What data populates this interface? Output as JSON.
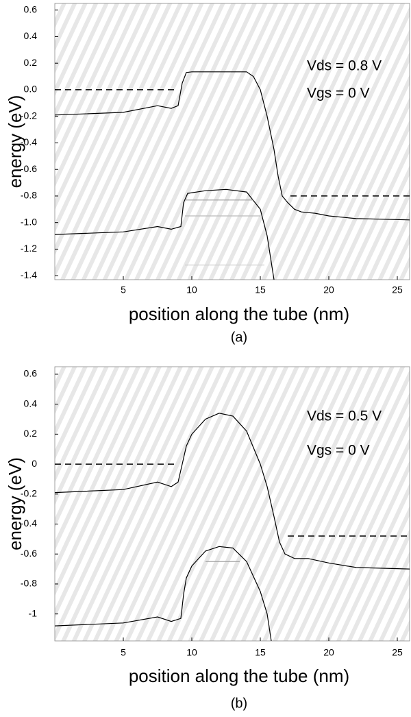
{
  "chart_data": [
    {
      "type": "line",
      "xlabel": "position along the tube (nm)",
      "ylabel": "energy (eV)",
      "caption": "(a)",
      "annotations": [
        "Vds = 0.8 V",
        "Vgs = 0 V"
      ],
      "xlim": [
        0,
        25.9
      ],
      "ylim": [
        -1.43,
        0.65
      ],
      "xticks": [
        5,
        10,
        15,
        20,
        25
      ],
      "yticks": [
        0.6,
        0.4,
        0.2,
        {
          "value": 0,
          "label": "0.0"
        },
        -0.2,
        -0.4,
        -0.6,
        -0.8,
        {
          "value": -1,
          "label": "-1.0"
        },
        -1.2,
        -1.4
      ],
      "series": [
        {
          "color": "#000000",
          "dash": false,
          "x": [
            0,
            5,
            7.5,
            8.5,
            9.0,
            9.3,
            9.6,
            10,
            14,
            14.5,
            15,
            15.5,
            16,
            16.3,
            16.6,
            17,
            17.5,
            18,
            19,
            20,
            22,
            25.9
          ],
          "values": [
            -0.19,
            -0.17,
            -0.12,
            -0.14,
            -0.12,
            0.05,
            0.13,
            0.135,
            0.135,
            0.1,
            0.0,
            -0.2,
            -0.45,
            -0.65,
            -0.8,
            -0.85,
            -0.9,
            -0.92,
            -0.93,
            -0.95,
            -0.97,
            -0.98
          ]
        },
        {
          "color": "#000000",
          "dash": false,
          "x": [
            0,
            5,
            7.5,
            8.5,
            9.2,
            9.4,
            9.7,
            11,
            12.5,
            14,
            15,
            15.5,
            16
          ],
          "values": [
            -1.09,
            -1.07,
            -1.03,
            -1.05,
            -1.03,
            -0.85,
            -0.78,
            -0.76,
            -0.75,
            -0.77,
            -0.9,
            -1.1,
            -1.43
          ]
        },
        {
          "color": "#000000",
          "dash": true,
          "x": [
            0,
            8.8
          ],
          "values": [
            0,
            0
          ]
        },
        {
          "color": "#000000",
          "dash": true,
          "x": [
            17.2,
            25.9
          ],
          "values": [
            -0.8,
            -0.8
          ]
        },
        {
          "color": "#999999",
          "dash": false,
          "x": [
            9.5,
            14.5
          ],
          "values": [
            -0.83,
            -0.83
          ]
        },
        {
          "color": "#bbbbbb",
          "dash": false,
          "x": [
            9.5,
            15
          ],
          "values": [
            -0.95,
            -0.95
          ]
        },
        {
          "color": "#cccccc",
          "dash": false,
          "x": [
            9.5,
            15.3
          ],
          "values": [
            -1.32,
            -1.32
          ]
        }
      ]
    },
    {
      "type": "line",
      "xlabel": "position along the tube (nm)",
      "ylabel": "energy (eV)",
      "caption": "(b)",
      "annotations": [
        "Vds = 0.5 V",
        "Vgs = 0 V"
      ],
      "xlim": [
        0,
        25.9
      ],
      "ylim": [
        -1.18,
        0.65
      ],
      "xticks": [
        5,
        10,
        15,
        20,
        25
      ],
      "yticks": [
        0.6,
        0.4,
        0.2,
        0,
        -0.2,
        -0.4,
        -0.6,
        -0.8,
        -1
      ],
      "series": [
        {
          "color": "#000000",
          "dash": false,
          "x": [
            0,
            5,
            7.5,
            8.5,
            9.0,
            9.3,
            9.6,
            10,
            11,
            12,
            13,
            14,
            15,
            15.5,
            16,
            16.4,
            16.8,
            17.5,
            18.5,
            20,
            22,
            25.9
          ],
          "values": [
            -0.19,
            -0.17,
            -0.12,
            -0.15,
            -0.12,
            0.0,
            0.12,
            0.2,
            0.3,
            0.34,
            0.32,
            0.22,
            0.0,
            -0.15,
            -0.35,
            -0.52,
            -0.6,
            -0.63,
            -0.63,
            -0.66,
            -0.69,
            -0.7
          ]
        },
        {
          "color": "#000000",
          "dash": false,
          "x": [
            0,
            5,
            7.5,
            8.5,
            9.2,
            9.4,
            9.6,
            10,
            11,
            12,
            13,
            14,
            15,
            15.5,
            15.8
          ],
          "values": [
            -1.08,
            -1.06,
            -1.02,
            -1.05,
            -1.03,
            -0.87,
            -0.76,
            -0.68,
            -0.58,
            -0.55,
            -0.56,
            -0.65,
            -0.85,
            -1.0,
            -1.18
          ]
        },
        {
          "color": "#000000",
          "dash": true,
          "x": [
            0,
            8.8
          ],
          "values": [
            0,
            0
          ]
        },
        {
          "color": "#000000",
          "dash": true,
          "x": [
            17,
            25.9
          ],
          "values": [
            -0.48,
            -0.48
          ]
        },
        {
          "color": "#999999",
          "dash": false,
          "x": [
            11,
            13.5
          ],
          "values": [
            -0.65,
            -0.65
          ]
        }
      ]
    }
  ]
}
